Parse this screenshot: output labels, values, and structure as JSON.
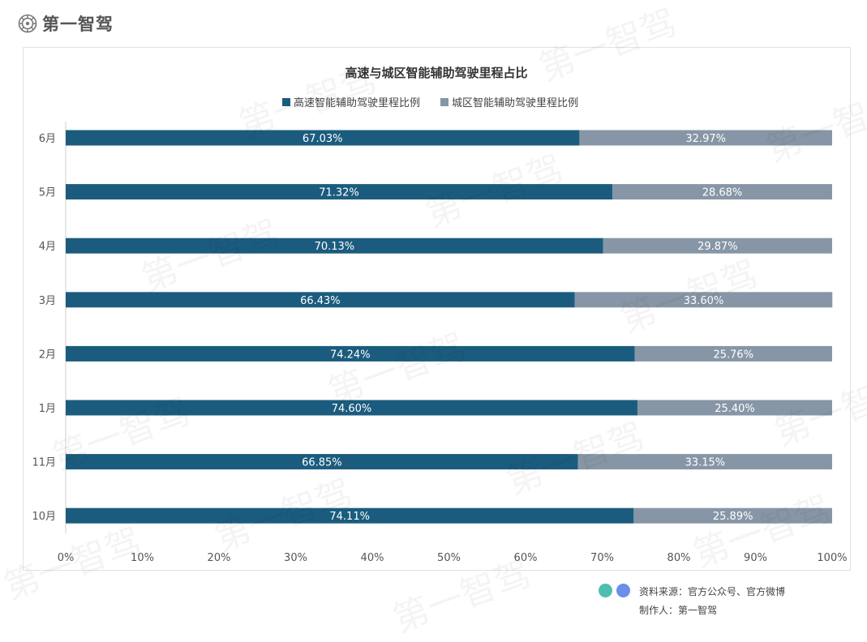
{
  "brand": {
    "name": "第一智驾",
    "icon": "gear-logo-icon"
  },
  "watermark_text": "第一智驾",
  "chart_data": {
    "type": "bar",
    "orientation": "horizontal",
    "stacked": true,
    "title": "高速与城区智能辅助驾驶里程占比",
    "categories": [
      "6月",
      "5月",
      "4月",
      "3月",
      "2月",
      "1月",
      "11月",
      "10月"
    ],
    "series": [
      {
        "name": "高速智能辅助驾驶里程比例",
        "color": "#1b5c7e",
        "values": [
          67.03,
          71.32,
          70.13,
          66.43,
          74.24,
          74.6,
          66.85,
          74.11
        ],
        "labels": [
          "67.03%",
          "71.32%",
          "70.13%",
          "66.43%",
          "74.24%",
          "74.60%",
          "66.85%",
          "74.11%"
        ]
      },
      {
        "name": "城区智能辅助驾驶里程比例",
        "color": "#8796a6",
        "values": [
          32.97,
          28.68,
          29.87,
          33.6,
          25.76,
          25.4,
          33.15,
          25.89
        ],
        "labels": [
          "32.97%",
          "28.68%",
          "29.87%",
          "33.60%",
          "25.76%",
          "25.40%",
          "33.15%",
          "25.89%"
        ]
      }
    ],
    "xlim": [
      0,
      100
    ],
    "xticks": [
      0,
      10,
      20,
      30,
      40,
      50,
      60,
      70,
      80,
      90,
      100
    ],
    "xtick_labels": [
      "0%",
      "10%",
      "20%",
      "30%",
      "40%",
      "50%",
      "60%",
      "70%",
      "80%",
      "90%",
      "100%"
    ],
    "legend_position": "top",
    "grid": false
  },
  "footer": {
    "source": "资料来源：官方公众号、官方微博",
    "maker": "制作人：第一智驾"
  }
}
